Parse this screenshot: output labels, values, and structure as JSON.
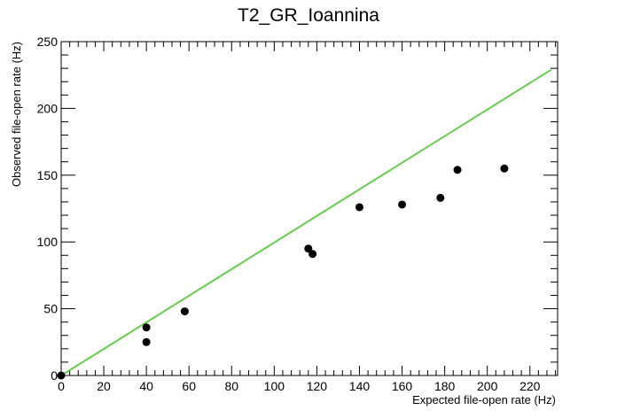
{
  "chart_data": {
    "type": "scatter",
    "title": "T2_GR_Ioannina",
    "xlabel": "Expected file-open rate (Hz)",
    "ylabel": "Observed file-open rate (Hz)",
    "xlim": [
      0,
      233
    ],
    "ylim": [
      0,
      250
    ],
    "x_ticks": [
      0,
      20,
      40,
      60,
      80,
      100,
      120,
      140,
      160,
      180,
      200,
      220
    ],
    "y_ticks": [
      0,
      50,
      100,
      150,
      200,
      250
    ],
    "grid": false,
    "series": [
      {
        "type": "scatter",
        "color": "#000000",
        "points": [
          {
            "x": 0,
            "y": 0
          },
          {
            "x": 40,
            "y": 36
          },
          {
            "x": 40,
            "y": 25
          },
          {
            "x": 58,
            "y": 48
          },
          {
            "x": 116,
            "y": 95
          },
          {
            "x": 118,
            "y": 91
          },
          {
            "x": 140,
            "y": 126
          },
          {
            "x": 160,
            "y": 128
          },
          {
            "x": 178,
            "y": 133
          },
          {
            "x": 186,
            "y": 154
          },
          {
            "x": 208,
            "y": 155
          }
        ]
      },
      {
        "type": "line",
        "color": "#66cc4d",
        "points": [
          {
            "x": 0,
            "y": 0
          },
          {
            "x": 230,
            "y": 229
          }
        ]
      }
    ]
  }
}
